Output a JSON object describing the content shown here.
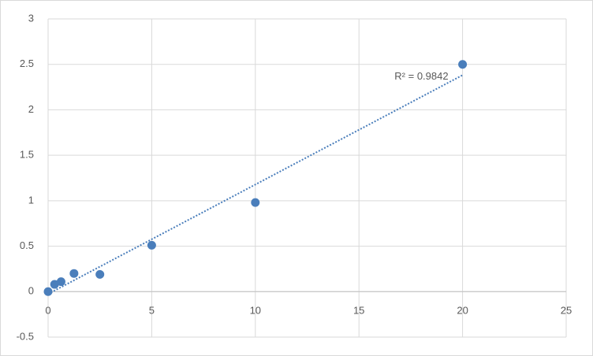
{
  "chart_data": {
    "type": "scatter",
    "series": [
      {
        "color": "#4a7ebb",
        "x": [
          0,
          0.3125,
          0.625,
          1.25,
          2.5,
          5,
          10,
          20
        ],
        "values": [
          0,
          0.08,
          0.11,
          0.2,
          0.19,
          0.51,
          0.98,
          2.5
        ]
      }
    ],
    "xlim": [
      0,
      25
    ],
    "xticks": [
      0,
      5,
      10,
      15,
      20,
      25
    ],
    "ylim": [
      -0.5,
      3
    ],
    "yticks": [
      -0.5,
      0,
      0.5,
      1,
      1.5,
      2,
      2.5,
      3
    ],
    "grid": true,
    "trendline": {
      "type": "linear",
      "label": "R² = 0.9842"
    }
  }
}
